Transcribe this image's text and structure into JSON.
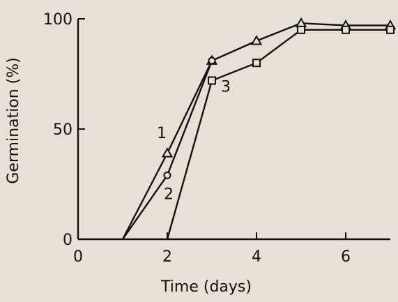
{
  "chart_data": {
    "type": "line",
    "title": "",
    "xlabel": "Time  (days)",
    "ylabel": "Germination (%)",
    "xlim": [
      0,
      7
    ],
    "ylim": [
      0,
      100
    ],
    "xticks": [
      0,
      2,
      4,
      6
    ],
    "yticks": [
      0,
      50,
      100
    ],
    "xtick_labels": [
      "0",
      "2",
      "4",
      "6"
    ],
    "ytick_labels": [
      "0",
      "50",
      "100"
    ],
    "grid": false,
    "series": [
      {
        "name": "1",
        "marker": "triangle",
        "x": [
          1,
          2,
          3,
          4,
          5,
          6,
          7
        ],
        "y": [
          0,
          39,
          81,
          90,
          98,
          97,
          97
        ]
      },
      {
        "name": "2",
        "marker": "circle",
        "x": [
          1,
          2,
          3
        ],
        "y": [
          0,
          29,
          81
        ]
      },
      {
        "name": "3",
        "marker": "square",
        "x": [
          2,
          3,
          4,
          5,
          6,
          7
        ],
        "y": [
          0,
          72,
          80,
          95,
          95,
          95
        ]
      }
    ]
  }
}
